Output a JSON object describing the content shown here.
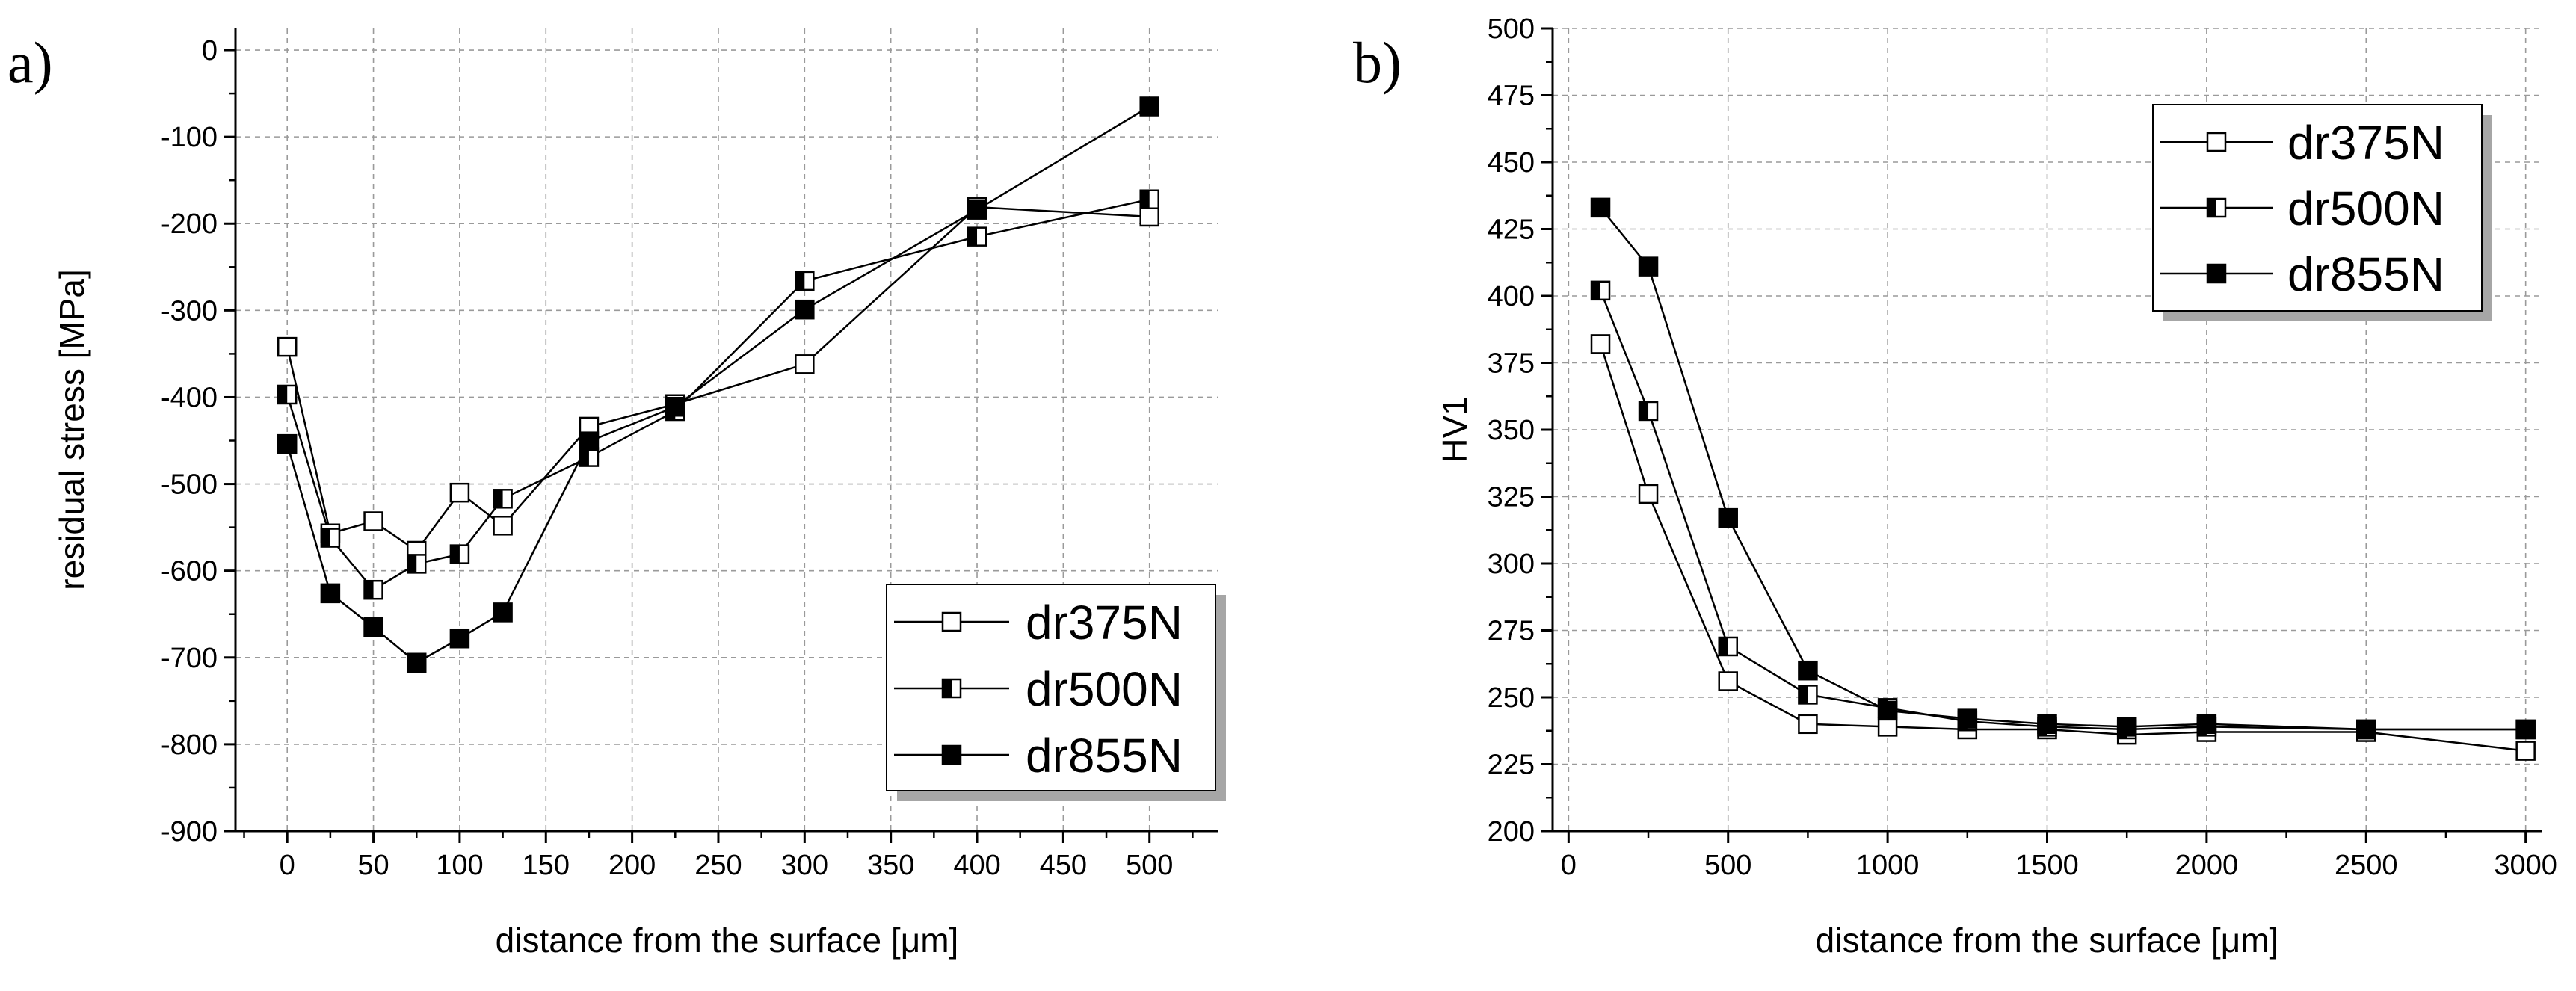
{
  "chart_data": [
    {
      "type": "line",
      "panel_label": "a)",
      "title": "",
      "xlabel": "distance from the surface [μm]",
      "ylabel": "residual stress [MPa]",
      "xlim": [
        -30,
        540
      ],
      "ylim": [
        -900,
        25
      ],
      "xticks": [
        0,
        50,
        100,
        150,
        200,
        250,
        300,
        350,
        400,
        450,
        500
      ],
      "yticks": [
        0,
        -100,
        -200,
        -300,
        -400,
        -500,
        -600,
        -700,
        -800,
        -900
      ],
      "grid": true,
      "legend_position": "bottom-right",
      "series": [
        {
          "name": "dr375N",
          "marker": "open-square",
          "x": [
            0,
            25,
            50,
            75,
            100,
            125,
            175,
            225,
            300,
            400,
            500
          ],
          "y": [
            -342,
            -557,
            -543,
            -577,
            -510,
            -548,
            -434,
            -408,
            -362,
            -181,
            -192
          ]
        },
        {
          "name": "dr500N",
          "marker": "half-filled-square",
          "x": [
            0,
            25,
            50,
            75,
            100,
            125,
            175,
            225,
            300,
            400,
            500
          ],
          "y": [
            -397,
            -562,
            -622,
            -592,
            -581,
            -517,
            -469,
            -416,
            -266,
            -215,
            -172
          ]
        },
        {
          "name": "dr855N",
          "marker": "filled-square",
          "x": [
            0,
            25,
            50,
            75,
            100,
            125,
            175,
            225,
            300,
            400,
            500
          ],
          "y": [
            -454,
            -626,
            -665,
            -706,
            -678,
            -648,
            -451,
            -411,
            -299,
            -184,
            -65
          ]
        }
      ]
    },
    {
      "type": "line",
      "panel_label": "b)",
      "title": "",
      "xlabel": "distance from the surface [μm]",
      "ylabel": "HV1",
      "xlim": [
        -50,
        3050
      ],
      "ylim": [
        200,
        500
      ],
      "xticks": [
        0,
        500,
        1000,
        1500,
        2000,
        2500,
        3000
      ],
      "yticks": [
        200,
        225,
        250,
        275,
        300,
        325,
        350,
        375,
        400,
        425,
        450,
        475,
        500
      ],
      "grid": true,
      "legend_position": "top-right",
      "series": [
        {
          "name": "dr375N",
          "marker": "open-square",
          "x": [
            100,
            250,
            500,
            750,
            1000,
            1250,
            1500,
            1750,
            2000,
            2500,
            3000
          ],
          "y": [
            382,
            326,
            256,
            240,
            239,
            238,
            238,
            236,
            237,
            237,
            230
          ]
        },
        {
          "name": "dr500N",
          "marker": "half-filled-square",
          "x": [
            100,
            250,
            500,
            750,
            1000,
            1250,
            1500,
            1750,
            2000,
            2500,
            3000
          ],
          "y": [
            402,
            357,
            269,
            251,
            246,
            241,
            239,
            238,
            239,
            238,
            238
          ]
        },
        {
          "name": "dr855N",
          "marker": "filled-square",
          "x": [
            100,
            250,
            500,
            750,
            1000,
            1250,
            1500,
            1750,
            2000,
            2500,
            3000
          ],
          "y": [
            433,
            411,
            317,
            260,
            245,
            242,
            240,
            239,
            240,
            238,
            238
          ]
        }
      ]
    }
  ]
}
